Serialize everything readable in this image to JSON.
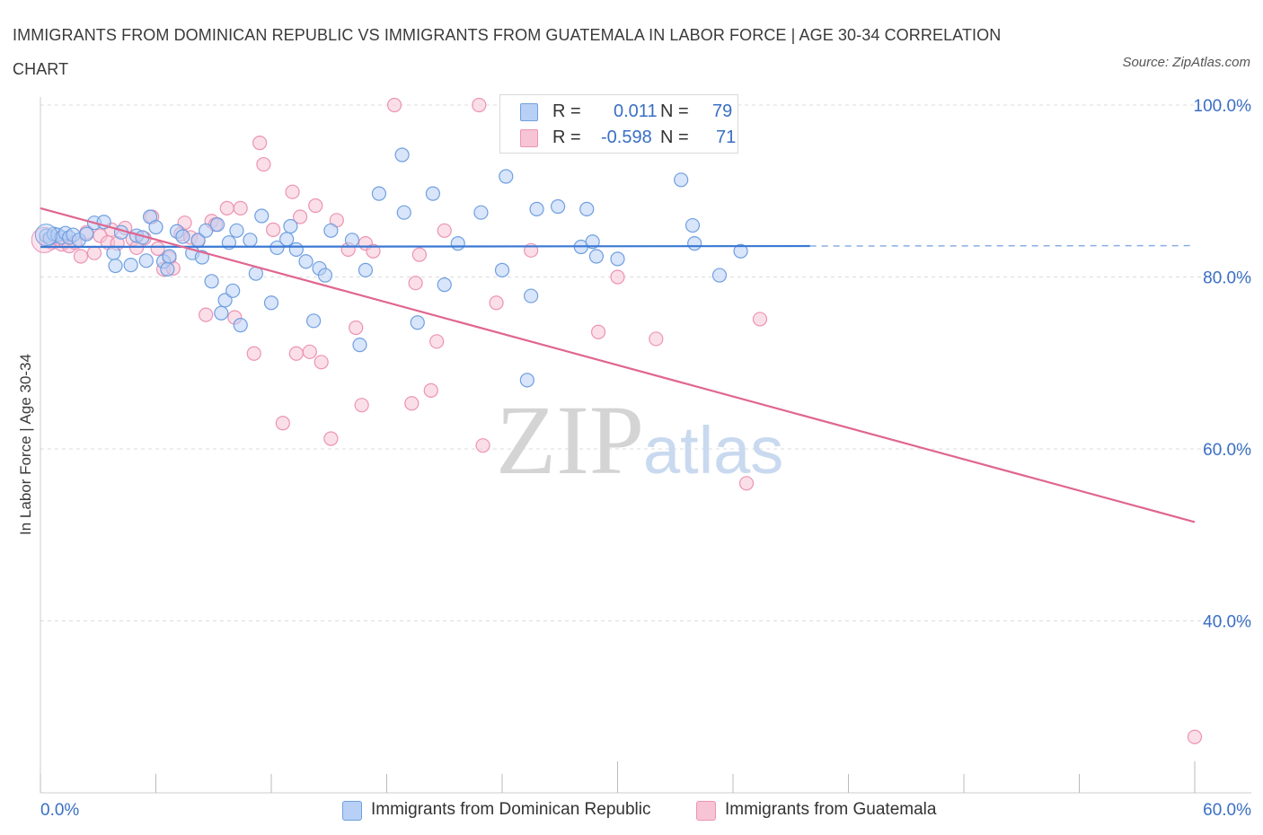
{
  "title": "IMMIGRANTS FROM DOMINICAN REPUBLIC VS IMMIGRANTS FROM GUATEMALA IN LABOR FORCE | AGE 30-34 CORRELATION CHART",
  "source": "Source: ZipAtlas.com",
  "watermark": {
    "zip": "ZIP",
    "atlas": "atlas"
  },
  "legend_top": [
    {
      "r_label": "R =",
      "r_value": "0.011",
      "n_label": "N =",
      "n_value": "79"
    },
    {
      "r_label": "R =",
      "r_value": "-0.598",
      "n_label": "N =",
      "n_value": "71"
    }
  ],
  "legend_bottom": [
    {
      "label": "Immigrants from Dominican Republic"
    },
    {
      "label": "Immigrants from Guatemala"
    }
  ],
  "colors": {
    "blue_fill": "#b8d0f5",
    "blue_stroke": "#6f9fe0",
    "blue_line": "#3a78d4",
    "pink_fill": "#f7c4d6",
    "pink_stroke": "#ec93b4",
    "pink_line": "#e0668f",
    "axis_text": "#3a6fc4",
    "grid": "#dddddd"
  },
  "chart_data": {
    "type": "scatter",
    "title": "IMMIGRANTS FROM DOMINICAN REPUBLIC VS IMMIGRANTS FROM GUATEMALA IN LABOR FORCE | AGE 30-34 CORRELATION CHART",
    "xlabel": "",
    "ylabel": "In Labor Force | Age 30-34",
    "xlim": [
      0,
      60
    ],
    "ylim": [
      20,
      100
    ],
    "x_tick_labels": [
      "0.0%",
      "60.0%"
    ],
    "y_ticks": [
      40,
      60,
      80,
      100
    ],
    "y_tick_labels": [
      "40.0%",
      "60.0%",
      "80.0%",
      "100.0%"
    ],
    "grid": true,
    "legend_position": "top-center",
    "series": [
      {
        "name": "Immigrants from Dominican Republic",
        "trend": {
          "x0": 0,
          "y0": 83.5,
          "x1": 40,
          "y1": 83.6,
          "dashed_to_x": 60
        },
        "points": [
          [
            0.3,
            84.8
          ],
          [
            0.5,
            84.5
          ],
          [
            0.7,
            85.0
          ],
          [
            0.9,
            84.9
          ],
          [
            1.1,
            84.6
          ],
          [
            1.3,
            85.1
          ],
          [
            1.5,
            84.6
          ],
          [
            1.7,
            84.9
          ],
          [
            2.0,
            84.3
          ],
          [
            2.4,
            85.0
          ],
          [
            2.8,
            86.3
          ],
          [
            3.3,
            86.4
          ],
          [
            3.8,
            82.8
          ],
          [
            3.9,
            81.3
          ],
          [
            4.2,
            85.2
          ],
          [
            4.7,
            81.4
          ],
          [
            5.0,
            84.8
          ],
          [
            5.3,
            84.6
          ],
          [
            5.5,
            81.9
          ],
          [
            5.7,
            87.0
          ],
          [
            6.0,
            85.8
          ],
          [
            6.4,
            81.8
          ],
          [
            6.6,
            80.9
          ],
          [
            6.7,
            82.4
          ],
          [
            7.1,
            85.3
          ],
          [
            7.4,
            84.7
          ],
          [
            7.9,
            82.8
          ],
          [
            8.2,
            84.3
          ],
          [
            8.4,
            82.3
          ],
          [
            8.6,
            85.4
          ],
          [
            8.9,
            79.5
          ],
          [
            9.2,
            86.1
          ],
          [
            9.4,
            75.8
          ],
          [
            9.6,
            77.3
          ],
          [
            9.8,
            84.0
          ],
          [
            10.0,
            78.4
          ],
          [
            10.2,
            85.4
          ],
          [
            10.4,
            74.4
          ],
          [
            10.9,
            84.3
          ],
          [
            11.2,
            80.4
          ],
          [
            11.5,
            87.1
          ],
          [
            12.0,
            77.0
          ],
          [
            12.3,
            83.4
          ],
          [
            12.8,
            84.4
          ],
          [
            13.0,
            85.9
          ],
          [
            13.3,
            83.2
          ],
          [
            13.8,
            81.8
          ],
          [
            14.2,
            74.9
          ],
          [
            14.5,
            81.0
          ],
          [
            14.8,
            80.2
          ],
          [
            15.1,
            85.4
          ],
          [
            16.2,
            84.3
          ],
          [
            16.6,
            72.1
          ],
          [
            16.9,
            80.8
          ],
          [
            17.6,
            89.7
          ],
          [
            18.8,
            94.2
          ],
          [
            18.9,
            87.5
          ],
          [
            19.6,
            74.7
          ],
          [
            20.4,
            89.7
          ],
          [
            21.0,
            79.1
          ],
          [
            21.7,
            83.9
          ],
          [
            22.9,
            87.5
          ],
          [
            24.0,
            80.8
          ],
          [
            24.2,
            91.7
          ],
          [
            25.3,
            68.0
          ],
          [
            25.5,
            77.8
          ],
          [
            25.8,
            87.9
          ],
          [
            26.9,
            88.2
          ],
          [
            28.1,
            83.5
          ],
          [
            28.4,
            87.9
          ],
          [
            28.7,
            84.1
          ],
          [
            28.9,
            82.4
          ],
          [
            30.0,
            82.1
          ],
          [
            33.3,
            91.3
          ],
          [
            33.9,
            86.0
          ],
          [
            34.0,
            83.9
          ],
          [
            35.3,
            80.2
          ],
          [
            36.4,
            83.0
          ]
        ]
      },
      {
        "name": "Immigrants from Guatemala",
        "trend": {
          "x0": 0,
          "y0": 88.0,
          "x1": 60,
          "y1": 51.5
        },
        "points": [
          [
            0.3,
            84.2
          ],
          [
            0.6,
            84.0
          ],
          [
            0.9,
            84.4
          ],
          [
            1.1,
            83.8
          ],
          [
            1.3,
            84.1
          ],
          [
            1.5,
            83.6
          ],
          [
            1.8,
            84.0
          ],
          [
            2.1,
            82.4
          ],
          [
            2.4,
            85.2
          ],
          [
            2.8,
            82.8
          ],
          [
            3.1,
            84.8
          ],
          [
            3.5,
            84.0
          ],
          [
            3.7,
            85.5
          ],
          [
            4.0,
            83.9
          ],
          [
            4.4,
            85.7
          ],
          [
            4.8,
            84.4
          ],
          [
            5.0,
            83.4
          ],
          [
            5.4,
            84.5
          ],
          [
            5.8,
            87.0
          ],
          [
            6.1,
            83.3
          ],
          [
            6.4,
            80.9
          ],
          [
            6.7,
            82.2
          ],
          [
            6.9,
            81.0
          ],
          [
            7.3,
            85.0
          ],
          [
            7.5,
            86.3
          ],
          [
            7.8,
            84.6
          ],
          [
            8.2,
            84.2
          ],
          [
            8.6,
            75.6
          ],
          [
            8.9,
            86.5
          ],
          [
            9.1,
            86.1
          ],
          [
            9.7,
            88.0
          ],
          [
            10.1,
            75.3
          ],
          [
            10.4,
            88.0
          ],
          [
            11.1,
            71.1
          ],
          [
            11.4,
            95.6
          ],
          [
            11.6,
            93.1
          ],
          [
            12.1,
            85.5
          ],
          [
            12.6,
            63.0
          ],
          [
            13.1,
            89.9
          ],
          [
            13.3,
            71.1
          ],
          [
            13.5,
            87.0
          ],
          [
            14.0,
            71.3
          ],
          [
            14.3,
            88.3
          ],
          [
            14.6,
            70.1
          ],
          [
            15.1,
            61.2
          ],
          [
            15.4,
            86.6
          ],
          [
            16.0,
            83.2
          ],
          [
            16.4,
            74.1
          ],
          [
            16.7,
            65.1
          ],
          [
            16.9,
            83.9
          ],
          [
            17.3,
            83.0
          ],
          [
            18.4,
            100.0
          ],
          [
            19.3,
            65.3
          ],
          [
            19.5,
            79.3
          ],
          [
            19.7,
            82.6
          ],
          [
            20.3,
            66.8
          ],
          [
            20.6,
            72.5
          ],
          [
            21.0,
            85.4
          ],
          [
            22.8,
            100.0
          ],
          [
            23.0,
            60.4
          ],
          [
            23.7,
            77.0
          ],
          [
            25.5,
            83.1
          ],
          [
            29.0,
            73.6
          ],
          [
            30.0,
            80.0
          ],
          [
            32.0,
            72.8
          ],
          [
            36.7,
            56.0
          ],
          [
            37.4,
            75.1
          ],
          [
            60.0,
            26.5
          ]
        ]
      }
    ]
  }
}
